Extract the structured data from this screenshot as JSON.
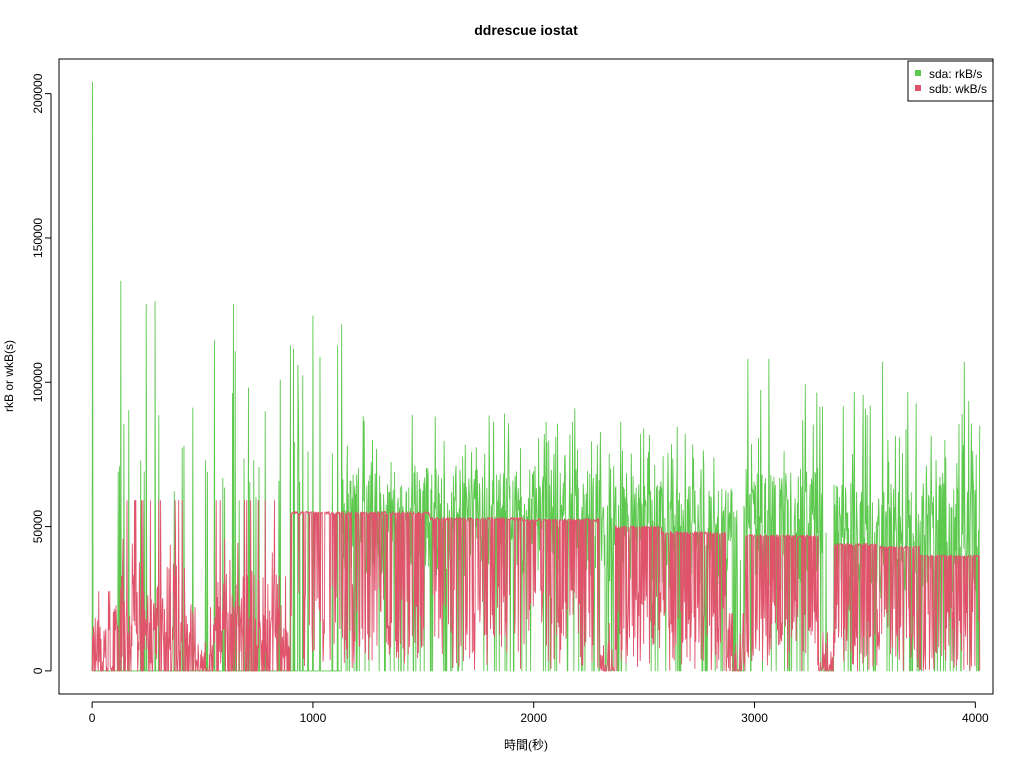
{
  "chart_data": {
    "type": "line",
    "title": "ddrescue iostat",
    "xlabel": "時間(秒)",
    "ylabel": "rkB or wkB(s)",
    "xlim": [
      -150,
      4080
    ],
    "ylim": [
      -8000,
      212000
    ],
    "x_ticks": [
      0,
      1000,
      2000,
      3000,
      4000
    ],
    "y_ticks": [
      0,
      50000,
      100000,
      150000,
      200000
    ],
    "legend_position": "top-right",
    "grid": false,
    "x_max": 4020,
    "series": [
      {
        "name": "sda: rkB/s",
        "color": "#5cc84e",
        "segments": [
          {
            "x": [
              0,
              550
            ],
            "base": 0,
            "high": 0,
            "spike_every": 25,
            "spike_peak": 110000
          },
          {
            "x": [
              550,
              1130
            ],
            "base": 0,
            "high": 0,
            "spike_every": 25,
            "spike_peak": 115000
          },
          {
            "x": [
              1130,
              2320
            ],
            "base": 33000,
            "high": 70000,
            "spike_every": 15,
            "spike_peak": 92000
          },
          {
            "x": [
              2320,
              2900
            ],
            "base": 28000,
            "high": 65000,
            "spike_every": 15,
            "spike_peak": 88000
          },
          {
            "x": [
              2900,
              2960
            ],
            "base": 0,
            "high": 0,
            "spike_every": 30,
            "spike_peak": 60000
          },
          {
            "x": [
              2960,
              3310
            ],
            "base": 28000,
            "high": 70000,
            "spike_every": 15,
            "spike_peak": 100000
          },
          {
            "x": [
              3310,
              3360
            ],
            "base": 0,
            "high": 0,
            "spike_every": 30,
            "spike_peak": 50000
          },
          {
            "x": [
              3360,
              4020
            ],
            "base": 25000,
            "high": 65000,
            "spike_every": 15,
            "spike_peak": 98000
          }
        ],
        "extra_points": [
          [
            2,
            204000
          ],
          [
            130,
            135000
          ],
          [
            245,
            127000
          ],
          [
            285,
            128000
          ],
          [
            640,
            127000
          ],
          [
            1000,
            123000
          ],
          [
            1130,
            120000
          ],
          [
            2970,
            108000
          ],
          [
            3065,
            108000
          ],
          [
            3580,
            107000
          ],
          [
            3950,
            107000
          ]
        ]
      },
      {
        "name": "sdb: wkB/s",
        "color": "#df536b",
        "segments": [
          {
            "x": [
              0,
              100
            ],
            "level": 0,
            "noise": 25000,
            "dip_every": 20
          },
          {
            "x": [
              100,
              460
            ],
            "level": 15000,
            "noise": 40000,
            "dip_every": 4
          },
          {
            "x": [
              460,
              550
            ],
            "level": 0,
            "noise": 20000,
            "dip_every": 6
          },
          {
            "x": [
              550,
              900
            ],
            "level": 15000,
            "noise": 40000,
            "dip_every": 4
          },
          {
            "x": [
              900,
              1150
            ],
            "level": 55000,
            "noise": 0,
            "dip_every": 8
          },
          {
            "x": [
              1150,
              1530
            ],
            "level": 55000,
            "noise": 0,
            "dip_every": 6
          },
          {
            "x": [
              1530,
              1950
            ],
            "level": 53000,
            "noise": 0,
            "dip_every": 6
          },
          {
            "x": [
              1950,
              2300
            ],
            "level": 52500,
            "noise": 0,
            "dip_every": 6
          },
          {
            "x": [
              2300,
              2370
            ],
            "level": 0,
            "noise": 15000,
            "dip_every": 4
          },
          {
            "x": [
              2370,
              2580
            ],
            "level": 50000,
            "noise": 0,
            "dip_every": 5
          },
          {
            "x": [
              2580,
              2870
            ],
            "level": 48000,
            "noise": 0,
            "dip_every": 5
          },
          {
            "x": [
              2870,
              2960
            ],
            "level": 0,
            "noise": 18000,
            "dip_every": 4
          },
          {
            "x": [
              2960,
              3290
            ],
            "level": 47000,
            "noise": 0,
            "dip_every": 5
          },
          {
            "x": [
              3290,
              3360
            ],
            "level": 0,
            "noise": 12000,
            "dip_every": 4
          },
          {
            "x": [
              3360,
              3560
            ],
            "level": 44000,
            "noise": 0,
            "dip_every": 5
          },
          {
            "x": [
              3560,
              3750
            ],
            "level": 43000,
            "noise": 0,
            "dip_every": 5
          },
          {
            "x": [
              3750,
              4020
            ],
            "level": 40000,
            "noise": 0,
            "dip_every": 5
          }
        ]
      }
    ]
  }
}
